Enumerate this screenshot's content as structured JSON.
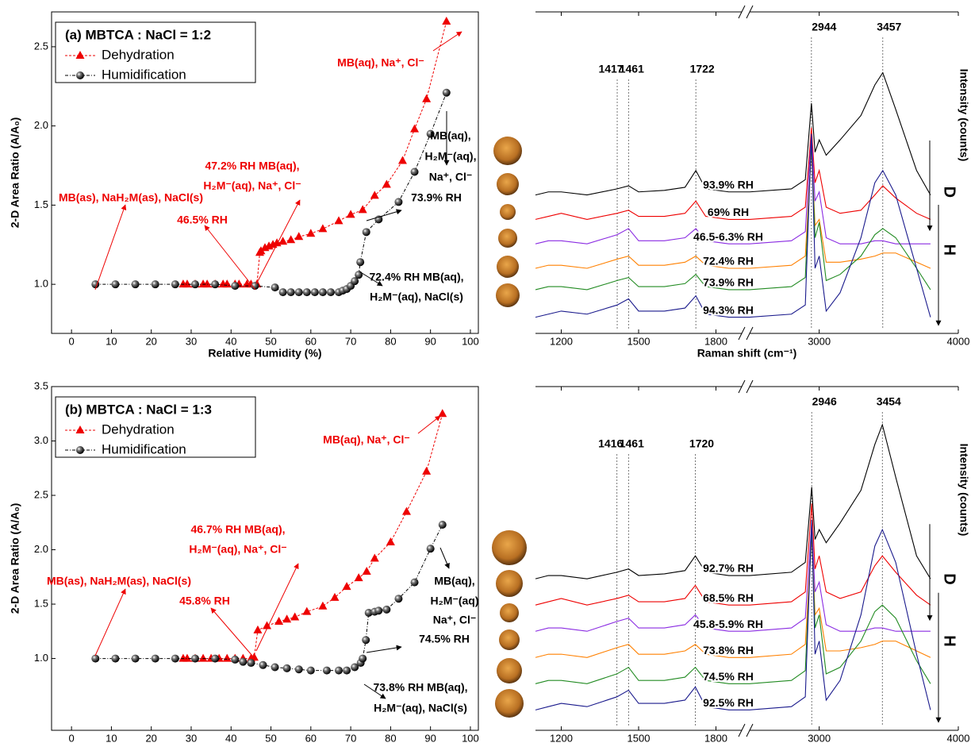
{
  "chart_data": [
    {
      "type": "line",
      "title": "(a) MBTCA : NaCl = 1:2",
      "x_label": "Relative Humidity (%)",
      "y_label": "2-D Area Ratio (A/A₀)",
      "xlim": [
        -5,
        102
      ],
      "xticks": [
        0,
        10,
        20,
        30,
        40,
        50,
        60,
        70,
        80,
        90,
        100
      ],
      "ylim": [
        0.69,
        2.72
      ],
      "yticks": [
        {
          "value": 1,
          "label": "1.0"
        },
        {
          "value": 1.5,
          "label": "1.5"
        },
        {
          "value": 2,
          "label": "2.0"
        },
        {
          "value": 2.5,
          "label": "2.5"
        }
      ],
      "legend": "upper left",
      "series": [
        {
          "name": "Dehydration",
          "color": "#ee0000",
          "marker": "triangle",
          "x": [
            94,
            89,
            86,
            83,
            79,
            76,
            73,
            70,
            67,
            63,
            60,
            57,
            55,
            53,
            51.5,
            50.5,
            49.5,
            48.5,
            47.5,
            47.2,
            46.5,
            45,
            44,
            42,
            41,
            39,
            38,
            36,
            34,
            33,
            31,
            29,
            28
          ],
          "values": [
            2.66,
            2.17,
            1.98,
            1.78,
            1.63,
            1.56,
            1.47,
            1.44,
            1.4,
            1.35,
            1.32,
            1.3,
            1.28,
            1.27,
            1.26,
            1.25,
            1.24,
            1.23,
            1.21,
            1.2,
            1.0,
            1.0,
            1.0,
            1.0,
            1.0,
            1.0,
            1.0,
            1.0,
            1.0,
            1.0,
            1.0,
            1.0,
            1.0
          ]
        },
        {
          "name": "Humidification",
          "color": "#000000",
          "marker": "sphere",
          "x": [
            6,
            11,
            16,
            21,
            26,
            31,
            36,
            41,
            46,
            51,
            53,
            55,
            57,
            59,
            61,
            63,
            65,
            67,
            68,
            69,
            70,
            71,
            72,
            72.4,
            73.9,
            77,
            82,
            86,
            90,
            94
          ],
          "values": [
            1.0,
            1.0,
            1.0,
            1.0,
            1.0,
            1.0,
            1.0,
            0.99,
            0.99,
            0.98,
            0.95,
            0.95,
            0.95,
            0.95,
            0.95,
            0.95,
            0.95,
            0.95,
            0.96,
            0.97,
            0.99,
            1.02,
            1.06,
            1.14,
            1.33,
            1.41,
            1.52,
            1.71,
            1.95,
            2.21
          ]
        }
      ],
      "annotations": [
        [
          "MB(aq), Na⁺, Cl⁻"
        ],
        [
          "47.2% RH MB(aq),",
          "H₂M⁻(aq), Na⁺, Cl⁻"
        ],
        [
          "MB(as), NaH₂M(as), NaCl(s)",
          "46.5% RH"
        ],
        [
          "MB(aq),",
          "H₂M⁻(aq),",
          "Na⁺, Cl⁻",
          "73.9% RH"
        ],
        [
          "72.4% RH MB(aq),",
          "H₂M⁻(aq), NaCl(s)"
        ]
      ]
    },
    {
      "type": "spectrum",
      "x_label": "Raman shift (cm⁻¹)",
      "y_label": "Intensity (counts)",
      "xlim": [
        [
          1100,
          1900
        ],
        [
          2500,
          4000
        ]
      ],
      "xticks": [
        1200,
        1500,
        1800,
        3000,
        4000
      ],
      "ylim": [
        0,
        100
      ],
      "peaks": [
        1417,
        1461,
        1722,
        2944,
        3457
      ],
      "arrow_labels": [
        "D",
        "H"
      ],
      "x": [
        1100,
        1150,
        1200,
        1300,
        1417,
        1461,
        1500,
        1600,
        1680,
        1722,
        1760,
        1850,
        1900,
        2500,
        2800,
        2900,
        2944,
        2970,
        3000,
        3050,
        3150,
        3300,
        3400,
        3457,
        3550,
        3700,
        3800
      ],
      "series": [
        {
          "name": "93.9% RH",
          "color": "#000000",
          "values": [
            44,
            45,
            45,
            44,
            46,
            47,
            45,
            45.5,
            46.5,
            52,
            46,
            45,
            45,
            45,
            46,
            49,
            74,
            58,
            62,
            57,
            62,
            70,
            80,
            84,
            72,
            52,
            44
          ]
        },
        {
          "name": "69% RH",
          "color": "#ee0000",
          "values": [
            36,
            37,
            38,
            36,
            38,
            39,
            37,
            37,
            38,
            42,
            37,
            36,
            36,
            36,
            37,
            40,
            66,
            48,
            52,
            40,
            38,
            39,
            44,
            47,
            43,
            38,
            36
          ]
        },
        {
          "name": "46.5-6.3% RH",
          "color": "#8a2be2",
          "values": [
            28,
            29,
            29,
            28,
            31,
            33,
            29,
            29,
            30,
            33,
            29,
            28,
            28,
            28,
            29,
            32,
            64,
            42,
            45,
            30,
            28,
            28,
            29,
            29,
            28,
            28,
            28
          ]
        },
        {
          "name": "72.4% RH",
          "color": "#ff8000",
          "values": [
            20,
            21,
            21,
            20,
            23,
            24,
            21,
            21,
            22,
            24,
            21,
            20,
            20,
            20,
            21,
            24,
            59,
            34,
            36,
            22,
            22,
            23,
            24,
            25,
            25,
            22,
            20
          ]
        },
        {
          "name": "73.9% RH",
          "color": "#228b22",
          "values": [
            13,
            14,
            14,
            13,
            16,
            17,
            14,
            14,
            15,
            18,
            14,
            13,
            13,
            13,
            14,
            17,
            61,
            30,
            35,
            16,
            18,
            24,
            31,
            33,
            30,
            20,
            13
          ]
        },
        {
          "name": "94.3% RH",
          "color": "#1a1a8c",
          "values": [
            4,
            5,
            6,
            5,
            8,
            10,
            6,
            6,
            7,
            11,
            5,
            4,
            4,
            4,
            5,
            8,
            64,
            20,
            24,
            6,
            12,
            30,
            48,
            52,
            44,
            20,
            4
          ]
        }
      ]
    },
    {
      "type": "line",
      "title": "(b) MBTCA : NaCl = 1:3",
      "x_label": "Relative Humidity (%)",
      "y_label": "2-D Area Ratio (A/A₀)",
      "xlim": [
        -5,
        102
      ],
      "xticks": [
        0,
        10,
        20,
        30,
        40,
        50,
        60,
        70,
        80,
        90,
        100
      ],
      "ylim": [
        0.34,
        3.5
      ],
      "yticks": [
        {
          "value": 1,
          "label": "1.0"
        },
        {
          "value": 1.5,
          "label": "1.5"
        },
        {
          "value": 2,
          "label": "2.0"
        },
        {
          "value": 2.5,
          "label": "2.5"
        },
        {
          "value": 3,
          "label": "3.0"
        },
        {
          "value": 3.5,
          "label": "3.5"
        }
      ],
      "legend": "upper left",
      "series": [
        {
          "name": "Dehydration",
          "color": "#ee0000",
          "marker": "triangle",
          "x": [
            93,
            89,
            84,
            80,
            76,
            74,
            72,
            69,
            66,
            63,
            59,
            56,
            54,
            52,
            49,
            46.7,
            45.8,
            45,
            43,
            41,
            39,
            37,
            35,
            33,
            31,
            29,
            28
          ],
          "values": [
            3.25,
            2.72,
            2.35,
            2.07,
            1.92,
            1.8,
            1.74,
            1.66,
            1.56,
            1.48,
            1.43,
            1.38,
            1.36,
            1.34,
            1.3,
            1.26,
            1.01,
            1.0,
            1.0,
            1.0,
            1.0,
            1.0,
            1.0,
            1.0,
            1.0,
            1.0,
            1.0
          ]
        },
        {
          "name": "Humidification",
          "color": "#000000",
          "marker": "sphere",
          "x": [
            6,
            11,
            16,
            21,
            26,
            31,
            36,
            41,
            43,
            45,
            48,
            51,
            54,
            57,
            60,
            64,
            67,
            69,
            71,
            72.5,
            73,
            73.8,
            74.5,
            76,
            77,
            79,
            82,
            86,
            90,
            93
          ],
          "values": [
            1.0,
            1.0,
            1.0,
            1.0,
            1.0,
            1.0,
            1.0,
            0.99,
            0.97,
            0.96,
            0.94,
            0.92,
            0.91,
            0.9,
            0.89,
            0.89,
            0.89,
            0.89,
            0.92,
            0.96,
            1.0,
            1.17,
            1.42,
            1.43,
            1.44,
            1.45,
            1.55,
            1.7,
            2.01,
            2.23
          ]
        }
      ],
      "annotations": [
        [
          "MB(aq), Na⁺, Cl⁻"
        ],
        [
          "46.7% RH MB(aq),",
          "H₂M⁻(aq), Na⁺, Cl⁻"
        ],
        [
          "MB(as), NaH₂M(as), NaCl(s)",
          "45.8% RH"
        ],
        [
          "MB(aq),",
          "H₂M⁻(aq)",
          "Na⁺, Cl⁻",
          "74.5% RH"
        ],
        [
          "73.8% RH MB(aq),",
          "H₂M⁻(aq), NaCl(s)"
        ]
      ]
    },
    {
      "type": "spectrum",
      "x_label": "Raman shift (cm⁻¹)",
      "y_label": "Intensity (counts)",
      "xlim": [
        [
          1100,
          1900
        ],
        [
          2500,
          4000
        ]
      ],
      "xticks": [
        1200,
        1500,
        1800,
        3000,
        4000
      ],
      "ylim": [
        0,
        100
      ],
      "peaks": [
        1416,
        1461,
        1720,
        2946,
        3454
      ],
      "arrow_labels": [
        "D",
        "H"
      ],
      "x": [
        1100,
        1150,
        1200,
        1300,
        1416,
        1461,
        1500,
        1600,
        1680,
        1720,
        1760,
        1850,
        1900,
        2500,
        2800,
        2900,
        2946,
        2970,
        3000,
        3050,
        3150,
        3300,
        3400,
        3454,
        3550,
        3700,
        3800
      ],
      "series": [
        {
          "name": "92.7% RH",
          "color": "#000000",
          "values": [
            45,
            46,
            46,
            45,
            47,
            48,
            46,
            46.5,
            47.5,
            52,
            47,
            46,
            46,
            46,
            47,
            50,
            73,
            57,
            60,
            56,
            62,
            72,
            86,
            92,
            76,
            52,
            45
          ]
        },
        {
          "name": "68.5% RH",
          "color": "#ee0000",
          "values": [
            37,
            38,
            39,
            37,
            39,
            40,
            38,
            38,
            39,
            43,
            38,
            37,
            37,
            37,
            38,
            41,
            68,
            48,
            52,
            41,
            39,
            41,
            49,
            52,
            47,
            40,
            37
          ]
        },
        {
          "name": "45.8-5.9% RH",
          "color": "#8a2be2",
          "values": [
            29,
            30,
            30,
            29,
            32,
            33,
            30,
            30,
            31,
            34,
            30,
            29,
            29,
            29,
            30,
            33,
            62,
            41,
            44,
            31,
            29,
            29,
            30,
            30,
            29,
            29,
            29
          ]
        },
        {
          "name": "73.8% RH",
          "color": "#ff8000",
          "values": [
            21,
            22,
            22,
            21,
            24,
            25,
            22,
            22,
            23,
            25,
            22,
            21,
            21,
            21,
            22,
            25,
            58,
            34,
            36,
            23,
            23,
            24,
            25,
            26,
            26,
            23,
            21
          ]
        },
        {
          "name": "74.5% RH",
          "color": "#228b22",
          "values": [
            13,
            14,
            14,
            13,
            16,
            18,
            14,
            14,
            15,
            18,
            14,
            13,
            13,
            13,
            14,
            17,
            60,
            30,
            34,
            16,
            18,
            26,
            35,
            37,
            33,
            20,
            13
          ]
        },
        {
          "name": "92.5% RH",
          "color": "#1a1a8c",
          "values": [
            5,
            6,
            7,
            6,
            9,
            11,
            7,
            7,
            8,
            12,
            6,
            5,
            5,
            5,
            6,
            9,
            63,
            22,
            26,
            8,
            14,
            34,
            55,
            60,
            50,
            22,
            5
          ]
        }
      ]
    }
  ]
}
